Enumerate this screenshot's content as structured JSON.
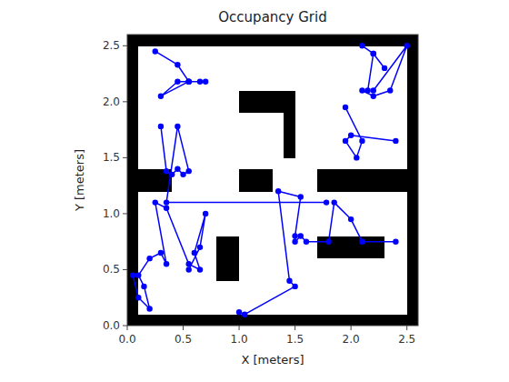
{
  "chart_data": {
    "type": "heatmap",
    "title": "Occupancy Grid",
    "x_label": "X [meters]",
    "y_label": "Y [meters]",
    "xlim": [
      0,
      2.6
    ],
    "ylim": [
      0,
      2.6
    ],
    "xticks": [
      {
        "value": 0,
        "label": "0.0"
      },
      0.5,
      {
        "value": 1,
        "label": "1.0"
      },
      1.5,
      {
        "value": 2,
        "label": "2.0"
      },
      2.5
    ],
    "yticks": [
      {
        "value": 0,
        "label": "0.0"
      },
      0.5,
      {
        "value": 1,
        "label": "1.0"
      },
      1.5,
      {
        "value": 2,
        "label": "2.0"
      },
      2.5
    ],
    "grid": false,
    "cells": [
      [
        1,
        1,
        1,
        1,
        1,
        1,
        1,
        1,
        1,
        1,
        1,
        1,
        1,
        1,
        1,
        1,
        1,
        1,
        1,
        1,
        1,
        1,
        1,
        1,
        1,
        1
      ],
      [
        1,
        0,
        0,
        0,
        0,
        0,
        0,
        0,
        0,
        0,
        0,
        0,
        0,
        0,
        0,
        0,
        0,
        0,
        0,
        0,
        0,
        0,
        0,
        0,
        0,
        1
      ],
      [
        1,
        0,
        0,
        0,
        0,
        0,
        0,
        0,
        0,
        0,
        0,
        0,
        0,
        0,
        0,
        0,
        0,
        0,
        0,
        0,
        0,
        0,
        0,
        0,
        0,
        1
      ],
      [
        1,
        0,
        0,
        0,
        0,
        0,
        0,
        0,
        0,
        0,
        0,
        0,
        0,
        0,
        0,
        0,
        0,
        0,
        0,
        0,
        0,
        0,
        0,
        0,
        0,
        1
      ],
      [
        1,
        0,
        0,
        0,
        0,
        0,
        0,
        0,
        1,
        1,
        0,
        0,
        0,
        0,
        0,
        0,
        0,
        0,
        0,
        0,
        0,
        0,
        0,
        0,
        0,
        1
      ],
      [
        1,
        0,
        0,
        0,
        0,
        0,
        0,
        0,
        1,
        1,
        0,
        0,
        0,
        0,
        0,
        0,
        0,
        0,
        0,
        0,
        0,
        0,
        0,
        0,
        0,
        1
      ],
      [
        1,
        0,
        0,
        0,
        0,
        0,
        0,
        0,
        1,
        1,
        0,
        0,
        0,
        0,
        0,
        0,
        0,
        1,
        1,
        1,
        1,
        1,
        1,
        0,
        0,
        1
      ],
      [
        1,
        0,
        0,
        0,
        0,
        0,
        0,
        0,
        1,
        1,
        0,
        0,
        0,
        0,
        0,
        0,
        0,
        1,
        1,
        1,
        1,
        1,
        1,
        0,
        0,
        1
      ],
      [
        1,
        0,
        0,
        0,
        0,
        0,
        0,
        0,
        0,
        0,
        0,
        0,
        0,
        0,
        0,
        0,
        0,
        0,
        0,
        0,
        0,
        0,
        0,
        0,
        0,
        1
      ],
      [
        1,
        0,
        0,
        0,
        0,
        0,
        0,
        0,
        0,
        0,
        0,
        0,
        0,
        0,
        0,
        0,
        0,
        0,
        0,
        0,
        0,
        0,
        0,
        0,
        0,
        1
      ],
      [
        1,
        0,
        0,
        0,
        0,
        0,
        0,
        0,
        0,
        0,
        0,
        0,
        0,
        0,
        0,
        0,
        0,
        0,
        0,
        0,
        0,
        0,
        0,
        0,
        0,
        1
      ],
      [
        1,
        0,
        0,
        0,
        0,
        0,
        0,
        0,
        0,
        0,
        0,
        0,
        0,
        0,
        0,
        0,
        0,
        0,
        0,
        0,
        0,
        0,
        0,
        0,
        0,
        1
      ],
      [
        1,
        1,
        1,
        1,
        0,
        0,
        0,
        0,
        0,
        0,
        1,
        1,
        1,
        0,
        0,
        0,
        0,
        1,
        1,
        1,
        1,
        1,
        1,
        1,
        1,
        1
      ],
      [
        1,
        1,
        1,
        1,
        0,
        0,
        0,
        0,
        0,
        0,
        1,
        1,
        1,
        0,
        0,
        0,
        0,
        1,
        1,
        1,
        1,
        1,
        1,
        1,
        1,
        1
      ],
      [
        1,
        0,
        0,
        0,
        0,
        0,
        0,
        0,
        0,
        0,
        0,
        0,
        0,
        0,
        0,
        0,
        0,
        0,
        0,
        0,
        0,
        0,
        0,
        0,
        0,
        1
      ],
      [
        1,
        0,
        0,
        0,
        0,
        0,
        0,
        0,
        0,
        0,
        0,
        0,
        0,
        0,
        1,
        0,
        0,
        0,
        0,
        0,
        0,
        0,
        0,
        0,
        0,
        1
      ],
      [
        1,
        0,
        0,
        0,
        0,
        0,
        0,
        0,
        0,
        0,
        0,
        0,
        0,
        0,
        1,
        0,
        0,
        0,
        0,
        0,
        0,
        0,
        0,
        0,
        0,
        1
      ],
      [
        1,
        0,
        0,
        0,
        0,
        0,
        0,
        0,
        0,
        0,
        0,
        0,
        0,
        0,
        1,
        0,
        0,
        0,
        0,
        0,
        0,
        0,
        0,
        0,
        0,
        1
      ],
      [
        1,
        0,
        0,
        0,
        0,
        0,
        0,
        0,
        0,
        0,
        0,
        0,
        0,
        0,
        1,
        0,
        0,
        0,
        0,
        0,
        0,
        0,
        0,
        0,
        0,
        1
      ],
      [
        1,
        0,
        0,
        0,
        0,
        0,
        0,
        0,
        0,
        0,
        1,
        1,
        1,
        1,
        1,
        0,
        0,
        0,
        0,
        0,
        0,
        0,
        0,
        0,
        0,
        1
      ],
      [
        1,
        0,
        0,
        0,
        0,
        0,
        0,
        0,
        0,
        0,
        1,
        1,
        1,
        1,
        1,
        0,
        0,
        0,
        0,
        0,
        0,
        0,
        0,
        0,
        0,
        1
      ],
      [
        1,
        0,
        0,
        0,
        0,
        0,
        0,
        0,
        0,
        0,
        0,
        0,
        0,
        0,
        0,
        0,
        0,
        0,
        0,
        0,
        0,
        0,
        0,
        0,
        0,
        1
      ],
      [
        1,
        0,
        0,
        0,
        0,
        0,
        0,
        0,
        0,
        0,
        0,
        0,
        0,
        0,
        0,
        0,
        0,
        0,
        0,
        0,
        0,
        0,
        0,
        0,
        0,
        1
      ],
      [
        1,
        0,
        0,
        0,
        0,
        0,
        0,
        0,
        0,
        0,
        0,
        0,
        0,
        0,
        0,
        0,
        0,
        0,
        0,
        0,
        0,
        0,
        0,
        0,
        0,
        1
      ],
      [
        1,
        0,
        0,
        0,
        0,
        0,
        0,
        0,
        0,
        0,
        0,
        0,
        0,
        0,
        0,
        0,
        0,
        0,
        0,
        0,
        0,
        0,
        0,
        0,
        0,
        1
      ],
      [
        1,
        1,
        1,
        1,
        1,
        1,
        1,
        1,
        1,
        1,
        1,
        1,
        1,
        1,
        1,
        1,
        1,
        1,
        1,
        1,
        1,
        1,
        1,
        1,
        1,
        1
      ]
    ],
    "series": [
      {
        "type": "line",
        "marker": "circle",
        "color": "blue",
        "x": [
          0.25,
          0.45,
          0.55,
          0.45,
          0.3,
          0.55,
          0.65,
          0.55,
          0.7
        ],
        "values": [
          2.45,
          2.33,
          2.18,
          2.18,
          2.05,
          2.18,
          2.18,
          2.18,
          2.18
        ]
      },
      {
        "type": "line",
        "marker": "circle",
        "color": "blue",
        "x": [
          2.1,
          2.2,
          2.3,
          2.2,
          2.15,
          2.1,
          2.2,
          2.35,
          2.5,
          2.2
        ],
        "values": [
          2.5,
          2.43,
          2.3,
          2.43,
          2.1,
          2.1,
          2.05,
          2.1,
          2.5,
          2.1
        ]
      },
      {
        "type": "line",
        "marker": "circle",
        "color": "blue",
        "x": [
          1.95,
          2.1,
          2.05,
          1.95,
          2.0,
          2.4
        ],
        "values": [
          1.95,
          1.65,
          1.5,
          1.65,
          1.7,
          1.65
        ]
      },
      {
        "type": "line",
        "marker": "circle",
        "color": "blue",
        "x": [
          0.3,
          0.35,
          0.4,
          0.45,
          0.5,
          0.55,
          0.45,
          0.35,
          1.78
        ],
        "values": [
          1.78,
          1.38,
          1.35,
          1.4,
          1.35,
          1.38,
          1.78,
          1.1,
          1.1
        ]
      },
      {
        "type": "line",
        "marker": "circle",
        "color": "blue",
        "x": [
          0.05,
          0.1,
          0.2,
          0.15,
          0.1,
          0.2,
          0.3,
          0.35,
          0.25,
          0.35,
          0.55,
          0.65,
          0.6,
          0.7,
          0.65,
          0.55
        ],
        "values": [
          0.45,
          0.25,
          0.15,
          0.35,
          0.45,
          0.6,
          0.65,
          0.55,
          1.1,
          1.05,
          0.55,
          0.5,
          0.65,
          1.0,
          0.7,
          0.5
        ]
      },
      {
        "type": "line",
        "marker": "circle",
        "color": "blue",
        "x": [
          1.0,
          1.05,
          1.5,
          1.45,
          1.35,
          1.55,
          1.5,
          1.5,
          1.55,
          1.6,
          1.8,
          1.85,
          2.0,
          2.1,
          2.4
        ],
        "values": [
          0.12,
          0.1,
          0.35,
          0.4,
          1.2,
          1.15,
          0.8,
          0.75,
          0.8,
          0.75,
          0.75,
          1.1,
          0.95,
          0.75,
          0.75
        ]
      }
    ]
  }
}
